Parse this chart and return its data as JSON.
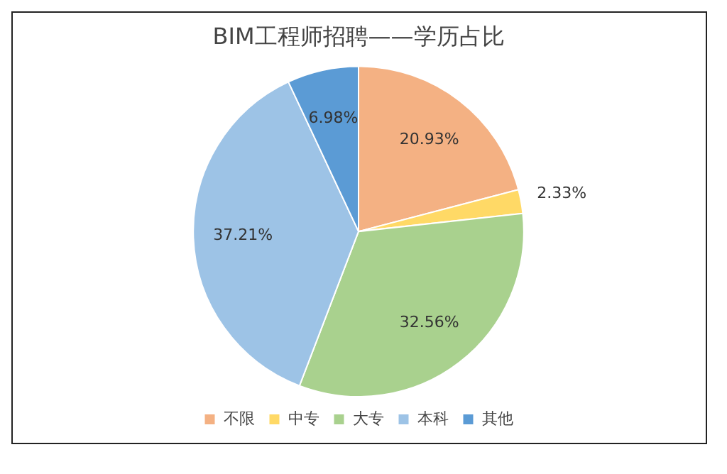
{
  "chart_data": {
    "type": "pie",
    "title": "BIM工程师招聘——学历占比",
    "categories": [
      "不限",
      "中专",
      "大专",
      "本科",
      "其他"
    ],
    "values": [
      20.93,
      2.33,
      32.56,
      37.21,
      6.98
    ],
    "value_labels": [
      "20.93%",
      "2.33%",
      "32.56%",
      "37.21%",
      "6.98%"
    ],
    "colors": [
      "#f4b183",
      "#ffd966",
      "#a9d18e",
      "#9dc3e6",
      "#5b9bd5"
    ],
    "legend": "bottom"
  }
}
